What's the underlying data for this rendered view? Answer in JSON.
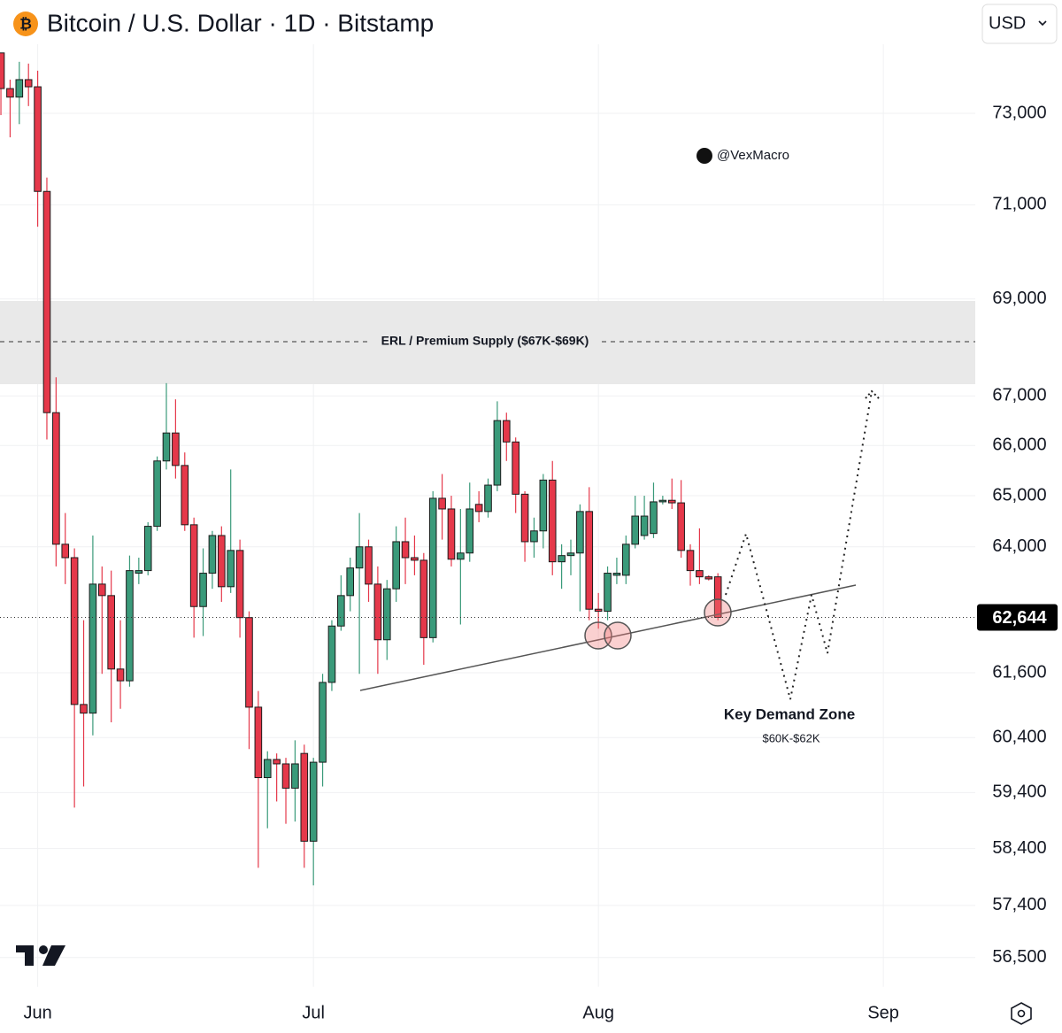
{
  "chart_data": {
    "type": "candlestick",
    "title": "Bitcoin / U.S. Dollar · 1D · Bitstamp",
    "currency": "USD",
    "watermark": "@VexMacro",
    "zone_label": "ERL / Premium Supply ($67K-$69K)",
    "demand_title": "Key Demand Zone",
    "demand_range": "$60K-$62K",
    "log_scale": true,
    "grid": true,
    "up_color": "#3a9a7a",
    "down_color": "#e5384a",
    "x": [
      -4,
      -3,
      -2,
      -1,
      0,
      1,
      2,
      3,
      4,
      5,
      6,
      7,
      8,
      9,
      10,
      11,
      12,
      13,
      14,
      15,
      16,
      17,
      18,
      19,
      20,
      21,
      22,
      23,
      24,
      25,
      26,
      27,
      28,
      29,
      30,
      31,
      32,
      33,
      34,
      35,
      36,
      37,
      38,
      39,
      40,
      41,
      42,
      43,
      44,
      45,
      46,
      47,
      48,
      49,
      50,
      51,
      52,
      53,
      54,
      55,
      56,
      57,
      58,
      59,
      60,
      61,
      62,
      63,
      64,
      65,
      66,
      67,
      68,
      69,
      70,
      71,
      72,
      73,
      74
    ],
    "open": [
      74350,
      73550,
      73360,
      73750,
      73590,
      71290,
      66660,
      64050,
      63790,
      61010,
      60850,
      63280,
      63060,
      61670,
      61450,
      63490,
      63540,
      64400,
      65690,
      66250,
      65600,
      64430,
      62850,
      63490,
      64220,
      63230,
      63930,
      62640,
      60960,
      59670,
      60000,
      59920,
      59480,
      60110,
      58530,
      59950,
      61420,
      62480,
      63060,
      63590,
      64000,
      63280,
      62220,
      63190,
      64100,
      63790,
      63740,
      62260,
      64950,
      64740,
      63760,
      63880,
      64830,
      64690,
      65210,
      66500,
      66070,
      65030,
      64100,
      64310,
      65310,
      63710,
      63830,
      63880,
      64690,
      62800,
      62760,
      63450,
      63450,
      64050,
      64220,
      64260,
      64880,
      64910,
      64860,
      63930,
      63540,
      63420,
      63420
    ],
    "high": [
      74350,
      73750,
      74150,
      74110,
      73950,
      71590,
      67380,
      64660,
      63970,
      62590,
      64220,
      63620,
      63540,
      62590,
      63830,
      63790,
      64480,
      65780,
      67260,
      66930,
      65860,
      64570,
      63970,
      64310,
      64400,
      65520,
      64140,
      62760,
      61260,
      60150,
      60110,
      60030,
      60350,
      60270,
      60030,
      61580,
      62590,
      63450,
      63790,
      64660,
      64140,
      63620,
      63360,
      64400,
      64570,
      64220,
      63880,
      65090,
      65430,
      65000,
      64740,
      65260,
      65090,
      65340,
      66890,
      66660,
      66160,
      65090,
      64570,
      65430,
      65690,
      64050,
      64140,
      64830,
      65170,
      63110,
      63620,
      63790,
      64220,
      65000,
      65000,
      65260,
      65000,
      65340,
      65310,
      64050,
      64360,
      63450,
      63490
    ],
    "low": [
      72960,
      72470,
      72760,
      73160,
      70530,
      66120,
      63620,
      63280,
      59130,
      59510,
      60440,
      61580,
      60680,
      60930,
      61340,
      63280,
      63450,
      64310,
      65520,
      65340,
      64310,
      62260,
      62290,
      63190,
      62940,
      63110,
      62260,
      60190,
      58060,
      58760,
      59240,
      58840,
      58880,
      58060,
      57750,
      59510,
      61260,
      62390,
      62760,
      61580,
      62940,
      61580,
      61840,
      62940,
      63280,
      63450,
      61750,
      62170,
      64140,
      63620,
      62510,
      63710,
      64480,
      64570,
      65090,
      65690,
      64660,
      63710,
      63790,
      63970,
      63450,
      63190,
      63450,
      62760,
      62590,
      62430,
      62590,
      63280,
      63280,
      63970,
      64140,
      64170,
      64830,
      64740,
      63790,
      63250,
      63280,
      63350,
      62590
    ],
    "close": [
      73550,
      73360,
      73750,
      73590,
      71290,
      66660,
      64050,
      63790,
      61010,
      60850,
      63280,
      63060,
      61670,
      61450,
      63540,
      63540,
      64400,
      65690,
      66250,
      65600,
      64430,
      62850,
      63490,
      64220,
      63230,
      63930,
      62640,
      60960,
      59670,
      60000,
      59920,
      59480,
      59920,
      58530,
      59950,
      61420,
      62480,
      63060,
      63590,
      64000,
      63280,
      62220,
      63190,
      64100,
      63790,
      63740,
      62260,
      64950,
      64740,
      63760,
      63880,
      64740,
      64690,
      65210,
      66500,
      66070,
      65030,
      64100,
      64310,
      65310,
      63710,
      63830,
      63880,
      64690,
      62800,
      62760,
      63490,
      63490,
      64050,
      64600,
      64600,
      64880,
      64910,
      64860,
      63930,
      63540,
      63420,
      63380,
      62644
    ],
    "last_price": {
      "value": 62644,
      "label": "62,644"
    },
    "xlim": [
      -4.1,
      102
    ],
    "xticks": [
      {
        "value": 0,
        "label": "Jun"
      },
      {
        "value": 30,
        "label": "Jul"
      },
      {
        "value": 61,
        "label": "Aug"
      },
      {
        "value": 92,
        "label": "Sep"
      }
    ],
    "ylim": [
      56000,
      75000
    ],
    "yticks": [
      {
        "value": 73000,
        "label": "73,000"
      },
      {
        "value": 71000,
        "label": "71,000"
      },
      {
        "value": 69000,
        "label": "69,000"
      },
      {
        "value": 67000,
        "label": "67,000"
      },
      {
        "value": 66000,
        "label": "66,000"
      },
      {
        "value": 65000,
        "label": "65,000"
      },
      {
        "value": 64000,
        "label": "64,000"
      },
      {
        "value": 61600,
        "label": "61,600"
      },
      {
        "value": 60400,
        "label": "60,400"
      },
      {
        "value": 59400,
        "label": "59,400"
      },
      {
        "value": 58400,
        "label": "58,400"
      },
      {
        "value": 57400,
        "label": "57,400"
      },
      {
        "value": 56500,
        "label": "56,500"
      }
    ]
  }
}
